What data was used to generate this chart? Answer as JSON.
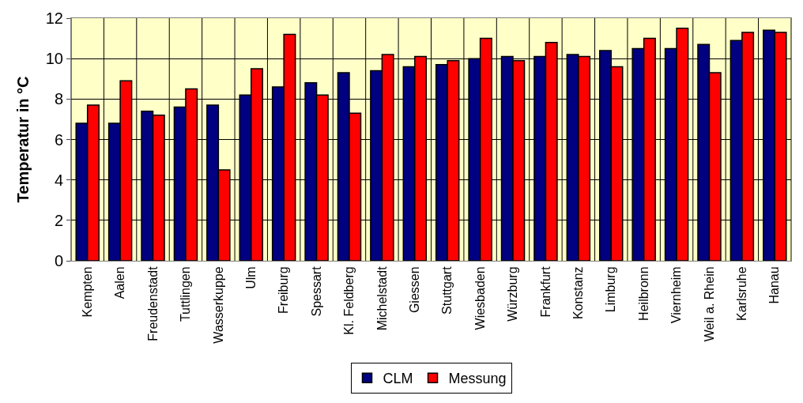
{
  "chart_data": {
    "type": "bar",
    "ylabel": "Temperatur in °C",
    "categories": [
      "Kempten",
      "Aalen",
      "Freudenstadt",
      "Tuttlingen",
      "Wasserkuppe",
      "Ulm",
      "Freiburg",
      "Spessart",
      "Kl. Feldberg",
      "Michelstadt",
      "Giessen",
      "Stuttgart",
      "Wiesbaden",
      "Würzburg",
      "Frankfurt",
      "Konstanz",
      "Limburg",
      "Heilbronn",
      "Viernheim",
      "Weil a. Rhein",
      "Karlsruhe",
      "Hanau"
    ],
    "series": [
      {
        "name": "CLM",
        "color": "#000080",
        "values": [
          6.8,
          6.8,
          7.4,
          7.6,
          7.7,
          8.2,
          8.6,
          8.8,
          9.3,
          9.4,
          9.6,
          9.7,
          10.0,
          10.1,
          10.1,
          10.2,
          10.4,
          10.5,
          10.5,
          10.7,
          10.9,
          11.4
        ]
      },
      {
        "name": "Messung",
        "color": "#ff0000",
        "values": [
          7.7,
          8.9,
          7.2,
          8.5,
          4.5,
          9.5,
          11.2,
          8.2,
          7.3,
          10.2,
          10.1,
          9.9,
          11.0,
          9.9,
          10.8,
          10.1,
          9.6,
          11.0,
          11.5,
          9.3,
          11.3,
          11.3
        ]
      }
    ],
    "ylim": [
      0,
      12
    ],
    "yticks": [
      0,
      2,
      4,
      6,
      8,
      10,
      12
    ],
    "grid": true,
    "legend": "bottom"
  }
}
